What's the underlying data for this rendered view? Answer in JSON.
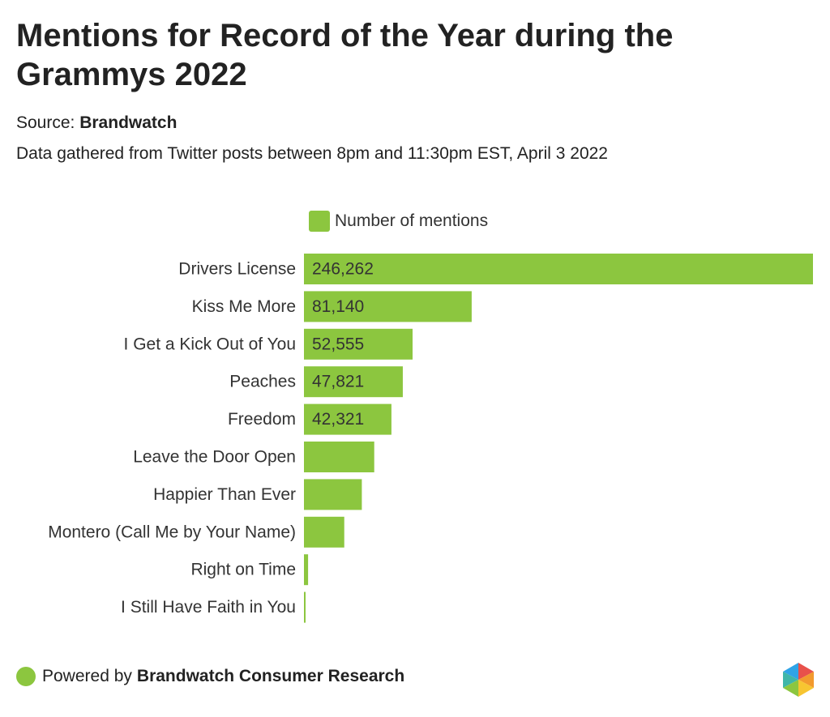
{
  "title": "Mentions for Record of the Year during the Grammys 2022",
  "source": {
    "label": "Source:",
    "name": "Brandwatch"
  },
  "note": "Data gathered from Twitter posts between 8pm and 11:30pm EST, April 3 2022",
  "footer": {
    "prefix": "Powered by",
    "brand": "Brandwatch Consumer Research"
  },
  "colors": {
    "bar": "#8cc63f",
    "text": "#222222",
    "axis": "#8cc63f"
  },
  "icons": {
    "footer": "green-dot-icon",
    "logo": "brandwatch-logo-icon"
  },
  "chart_data": {
    "type": "bar",
    "orientation": "horizontal",
    "legend": {
      "label": "Number of mentions",
      "position": "top"
    },
    "categories": [
      "Drivers License",
      "Kiss Me More",
      "I Get a Kick Out of You",
      "Peaches",
      "Freedom",
      "Leave the Door Open",
      "Happier Than Ever",
      "Montero (Call Me by Your Name)",
      "Right on Time",
      "I Still Have Faith in You"
    ],
    "values": [
      246262,
      81140,
      52555,
      47821,
      42321,
      34000,
      28000,
      19500,
      2000,
      400
    ],
    "data_labels": [
      "246,262",
      "81,140",
      "52,555",
      "47,821",
      "42,321",
      "",
      "",
      "",
      "",
      ""
    ],
    "xlim": [
      0,
      246262
    ],
    "grid": false
  }
}
